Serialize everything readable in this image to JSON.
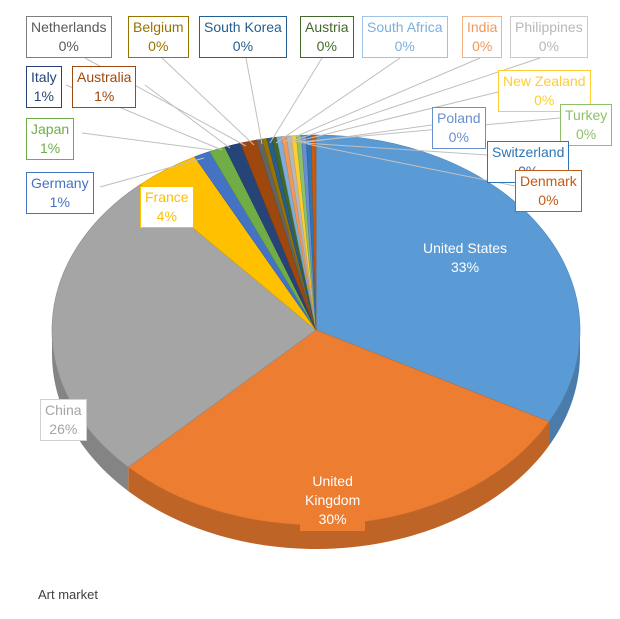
{
  "chart_data": {
    "type": "pie",
    "title": "Art market",
    "slices": [
      {
        "label": "United States",
        "value": 33,
        "display": "33%",
        "color": "#5b9bd5"
      },
      {
        "label": "United Kingdom",
        "label_lines": [
          "United",
          "Kingdom"
        ],
        "value": 30,
        "display": "30%",
        "color": "#ed7d31"
      },
      {
        "label": "China",
        "value": 26,
        "display": "26%",
        "color": "#a5a5a5"
      },
      {
        "label": "France",
        "value": 4,
        "display": "4%",
        "color": "#ffc000"
      },
      {
        "label": "Germany",
        "value": 1,
        "display": "1%",
        "color": "#4472c4"
      },
      {
        "label": "Japan",
        "value": 1,
        "display": "1%",
        "color": "#70ad47"
      },
      {
        "label": "Italy",
        "value": 1,
        "display": "1%",
        "color": "#264478"
      },
      {
        "label": "Australia",
        "value": 1,
        "display": "1%",
        "color": "#9e480e"
      },
      {
        "label": "Netherlands",
        "value": 0.35,
        "display": "0%",
        "color": "#636363"
      },
      {
        "label": "Belgium",
        "value": 0.3,
        "display": "0%",
        "color": "#997300"
      },
      {
        "label": "South Korea",
        "value": 0.3,
        "display": "0%",
        "color": "#255e91"
      },
      {
        "label": "Austria",
        "value": 0.3,
        "display": "0%",
        "color": "#43682b"
      },
      {
        "label": "South Africa",
        "value": 0.3,
        "display": "0%",
        "color": "#7cafdd"
      },
      {
        "label": "India",
        "value": 0.3,
        "display": "0%",
        "color": "#f1975a"
      },
      {
        "label": "Philippines",
        "value": 0.3,
        "display": "0%",
        "color": "#b7b7b7"
      },
      {
        "label": "New Zealand",
        "value": 0.3,
        "display": "0%",
        "color": "#ffcd33"
      },
      {
        "label": "Turkey",
        "value": 0.3,
        "display": "0%",
        "color": "#8cc168"
      },
      {
        "label": "Poland",
        "value": 0.3,
        "display": "0%",
        "color": "#698ed0"
      },
      {
        "label": "Switzerland",
        "value": 0.3,
        "display": "0%",
        "color": "#2e75b6"
      },
      {
        "label": "Denmark",
        "value": 0.3,
        "display": "0%",
        "color": "#c55a11"
      }
    ],
    "legend": "none",
    "style": "3d-pie"
  }
}
